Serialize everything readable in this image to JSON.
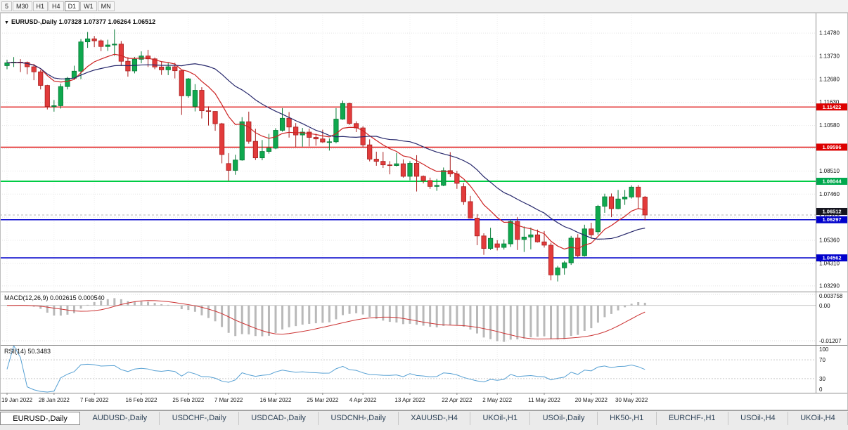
{
  "toolbar": {
    "timeframes": [
      {
        "label": "5",
        "active": false
      },
      {
        "label": "M30",
        "active": false
      },
      {
        "label": "H1",
        "active": false
      },
      {
        "label": "H4",
        "active": false
      },
      {
        "label": "D1",
        "active": true
      },
      {
        "label": "W1",
        "active": false
      },
      {
        "label": "MN",
        "active": false
      }
    ]
  },
  "symbol_header": {
    "dropdown_icon": "▼",
    "symbol": "EURUSD-,Daily",
    "ohlc": "1.07328 1.07377 1.06264 1.06512"
  },
  "tabs": [
    {
      "label": "EURUSD-,Daily",
      "active": true
    },
    {
      "label": "AUDUSD-,Daily",
      "active": false
    },
    {
      "label": "USDCHF-,Daily",
      "active": false
    },
    {
      "label": "USDCAD-,Daily",
      "active": false
    },
    {
      "label": "USDCNH-,Daily",
      "active": false
    },
    {
      "label": "XAUUSD-,H4",
      "active": false
    },
    {
      "label": "UKOil-,H1",
      "active": false
    },
    {
      "label": "USOil-,Daily",
      "active": false
    },
    {
      "label": "HK50-,H1",
      "active": false
    },
    {
      "label": "EURCHF-,H1",
      "active": false
    },
    {
      "label": "USOil-,H4",
      "active": false
    },
    {
      "label": "UKOil-,H4",
      "active": false
    }
  ],
  "chart_data": {
    "type": "candlestick",
    "symbol": "EURUSD",
    "timeframe": "Daily",
    "ohlc_current": {
      "open": 1.07328,
      "high": 1.07377,
      "low": 1.06264,
      "close": 1.06512
    },
    "colors": {
      "up": "#0fa84e",
      "up_border": "#067a36",
      "down": "#e23b3b",
      "down_border": "#a81f1f"
    },
    "price_range": [
      1.0303,
      1.1571
    ],
    "y_axis": {
      "ticks": [
        {
          "label": "1.14780",
          "value": 1.1478
        },
        {
          "label": "1.13730",
          "value": 1.1373
        },
        {
          "label": "1.12680",
          "value": 1.1268
        },
        {
          "label": "1.11630",
          "value": 1.1163
        },
        {
          "label": "1.10580",
          "value": 1.1058
        },
        {
          "label": "1.09530",
          "value": 1.0953
        },
        {
          "label": "1.08510",
          "value": 1.0851
        },
        {
          "label": "1.07460",
          "value": 1.0746
        },
        {
          "label": "1.06410",
          "value": 1.0641
        },
        {
          "label": "1.05360",
          "value": 1.0536
        },
        {
          "label": "1.04310",
          "value": 1.0431
        },
        {
          "label": "1.03290",
          "value": 1.0329
        }
      ]
    },
    "x_axis": {
      "ticks": [
        {
          "label": "19 Jan 2022",
          "index": 0
        },
        {
          "label": "28 Jan 2022",
          "index": 7
        },
        {
          "label": "7 Feb 2022",
          "index": 13
        },
        {
          "label": "16 Feb 2022",
          "index": 20
        },
        {
          "label": "25 Feb 2022",
          "index": 27
        },
        {
          "label": "7 Mar 2022",
          "index": 33
        },
        {
          "label": "16 Mar 2022",
          "index": 40
        },
        {
          "label": "25 Mar 2022",
          "index": 47
        },
        {
          "label": "4 Apr 2022",
          "index": 53
        },
        {
          "label": "13 Apr 2022",
          "index": 60
        },
        {
          "label": "22 Apr 2022",
          "index": 67
        },
        {
          "label": "2 May 2022",
          "index": 73
        },
        {
          "label": "11 May 2022",
          "index": 80
        },
        {
          "label": "20 May 2022",
          "index": 87
        },
        {
          "label": "30 May 2022",
          "index": 93
        }
      ]
    },
    "candles": [
      [
        1.133,
        1.1357,
        1.1314,
        1.1343
      ],
      [
        1.1343,
        1.1369,
        1.1324,
        1.1346
      ],
      [
        1.1346,
        1.136,
        1.1301,
        1.1345
      ],
      [
        1.1345,
        1.1349,
        1.1291,
        1.1325
      ],
      [
        1.1325,
        1.1338,
        1.1264,
        1.1302
      ],
      [
        1.1302,
        1.1311,
        1.1222,
        1.124
      ],
      [
        1.124,
        1.1243,
        1.1131,
        1.1144
      ],
      [
        1.1144,
        1.1174,
        1.1121,
        1.1148
      ],
      [
        1.1148,
        1.1248,
        1.1135,
        1.1235
      ],
      [
        1.1235,
        1.1279,
        1.1222,
        1.1273
      ],
      [
        1.1273,
        1.133,
        1.1266,
        1.1305
      ],
      [
        1.1305,
        1.1451,
        1.1269,
        1.1438
      ],
      [
        1.1438,
        1.1483,
        1.1411,
        1.1452
      ],
      [
        1.1452,
        1.1465,
        1.1414,
        1.1443
      ],
      [
        1.1443,
        1.1449,
        1.1396,
        1.1417
      ],
      [
        1.1417,
        1.1448,
        1.1397,
        1.1424
      ],
      [
        1.1424,
        1.1495,
        1.1375,
        1.1428
      ],
      [
        1.1428,
        1.1442,
        1.1329,
        1.135
      ],
      [
        1.135,
        1.1369,
        1.128,
        1.1306
      ],
      [
        1.1306,
        1.137,
        1.1295,
        1.1359
      ],
      [
        1.1359,
        1.1395,
        1.1341,
        1.1374
      ],
      [
        1.1374,
        1.1402,
        1.1324,
        1.1361
      ],
      [
        1.1361,
        1.1367,
        1.1314,
        1.1324
      ],
      [
        1.1324,
        1.135,
        1.1288,
        1.1311
      ],
      [
        1.1311,
        1.1344,
        1.1287,
        1.1325
      ],
      [
        1.1325,
        1.1343,
        1.1272,
        1.1307
      ],
      [
        1.1307,
        1.1309,
        1.1106,
        1.1193
      ],
      [
        1.1193,
        1.1274,
        1.1184,
        1.127
      ],
      [
        1.1145,
        1.1246,
        1.1122,
        1.1218
      ],
      [
        1.1218,
        1.1232,
        1.109,
        1.1125
      ],
      [
        1.1125,
        1.1145,
        1.1058,
        1.1122
      ],
      [
        1.1122,
        1.1123,
        1.1034,
        1.1066
      ],
      [
        1.1066,
        1.107,
        1.0886,
        1.0926
      ],
      [
        1.0885,
        1.0932,
        1.0806,
        1.0854
      ],
      [
        1.0854,
        1.0925,
        1.0834,
        1.0901
      ],
      [
        1.0901,
        1.1096,
        1.0898,
        1.1075
      ],
      [
        1.1075,
        1.1121,
        1.0975,
        1.0986
      ],
      [
        1.0986,
        1.1043,
        1.0901,
        1.0911
      ],
      [
        1.0911,
        1.0992,
        1.09,
        1.094
      ],
      [
        1.094,
        1.102,
        1.093,
        1.0955
      ],
      [
        1.0955,
        1.1046,
        1.095,
        1.1036
      ],
      [
        1.1036,
        1.1137,
        1.103,
        1.1091
      ],
      [
        1.1091,
        1.1119,
        1.1003,
        1.1051
      ],
      [
        1.1051,
        1.1069,
        1.0961,
        1.1015
      ],
      [
        1.1015,
        1.1047,
        1.0962,
        1.1028
      ],
      [
        1.1028,
        1.1044,
        1.0963,
        1.1004
      ],
      [
        1.1004,
        1.1021,
        1.0966,
        1.0997
      ],
      [
        1.0997,
        1.1039,
        1.0979,
        1.0983
      ],
      [
        1.0983,
        1.0999,
        1.0944,
        1.0984
      ],
      [
        1.0984,
        1.1137,
        1.0977,
        1.1087
      ],
      [
        1.1087,
        1.1171,
        1.1084,
        1.1158
      ],
      [
        1.1158,
        1.1162,
        1.1061,
        1.1067
      ],
      [
        1.1067,
        1.1077,
        1.1028,
        1.1047
      ],
      [
        1.1047,
        1.1055,
        1.096,
        1.097
      ],
      [
        1.097,
        1.0995,
        1.0895,
        1.0905
      ],
      [
        1.0905,
        1.0939,
        1.0875,
        1.0895
      ],
      [
        1.0895,
        1.0938,
        1.0865,
        1.0879
      ],
      [
        1.0879,
        1.0896,
        1.0836,
        1.0876
      ],
      [
        1.0876,
        1.0933,
        1.0872,
        1.0884
      ],
      [
        1.0884,
        1.0904,
        1.0821,
        1.0827
      ],
      [
        1.0827,
        1.0896,
        1.0809,
        1.0886
      ],
      [
        1.0886,
        1.0923,
        1.0758,
        1.0827
      ],
      [
        1.0827,
        1.0831,
        1.0795,
        1.0808
      ],
      [
        1.0808,
        1.0821,
        1.077,
        1.0781
      ],
      [
        1.0781,
        1.0815,
        1.0761,
        1.0786
      ],
      [
        1.0786,
        1.0867,
        1.0782,
        1.0853
      ],
      [
        1.0853,
        1.0937,
        1.0824,
        1.0838
      ],
      [
        1.0838,
        1.0852,
        1.077,
        1.0795
      ],
      [
        1.078,
        1.0797,
        1.0697,
        1.0712
      ],
      [
        1.0712,
        1.0738,
        1.0635,
        1.0637
      ],
      [
        1.0637,
        1.0655,
        1.0514,
        1.0556
      ],
      [
        1.0556,
        1.0568,
        1.047,
        1.0499
      ],
      [
        1.0499,
        1.0593,
        1.0492,
        1.0545
      ],
      [
        1.052,
        1.0537,
        1.049,
        1.0504
      ],
      [
        1.0504,
        1.054,
        1.0494,
        1.052
      ],
      [
        1.052,
        1.0632,
        1.0506,
        1.0622
      ],
      [
        1.0622,
        1.0642,
        1.0492,
        1.054
      ],
      [
        1.054,
        1.0599,
        1.0483,
        1.0551
      ],
      [
        1.0551,
        1.0594,
        1.0495,
        1.0561
      ],
      [
        1.0561,
        1.0585,
        1.0526,
        1.0529
      ],
      [
        1.0529,
        1.0578,
        1.0503,
        1.0514
      ],
      [
        1.0514,
        1.0525,
        1.0354,
        1.0379
      ],
      [
        1.0379,
        1.042,
        1.0349,
        1.0411
      ],
      [
        1.0411,
        1.0443,
        1.038,
        1.0434
      ],
      [
        1.0434,
        1.0556,
        1.0424,
        1.0546
      ],
      [
        1.0546,
        1.0564,
        1.0459,
        1.0466
      ],
      [
        1.0466,
        1.0607,
        1.0462,
        1.0588
      ],
      [
        1.0588,
        1.0616,
        1.0543,
        1.0561
      ],
      [
        1.0575,
        1.0697,
        1.0561,
        1.0691
      ],
      [
        1.0691,
        1.0748,
        1.0661,
        1.0734
      ],
      [
        1.0734,
        1.0749,
        1.0641,
        1.068
      ],
      [
        1.068,
        1.0765,
        1.0677,
        1.0724
      ],
      [
        1.0724,
        1.0765,
        1.0697,
        1.0733
      ],
      [
        1.0733,
        1.0786,
        1.0726,
        1.0778
      ],
      [
        1.0778,
        1.0787,
        1.0678,
        1.0733
      ],
      [
        1.07328,
        1.07377,
        1.06264,
        1.06512
      ]
    ],
    "moving_averages": [
      {
        "name": "fast-ma",
        "period": 10,
        "method": "ema",
        "color": "#cc2222"
      },
      {
        "name": "slow-ma",
        "period": 21,
        "method": "sma",
        "color": "#26276b"
      }
    ],
    "levels": [
      {
        "value": 1.11422,
        "label": "1.11422",
        "color": "#dd0000",
        "badge_color": "#dd0000",
        "width": 1.3
      },
      {
        "value": 1.09596,
        "label": "1.09596",
        "color": "#dd0000",
        "badge_color": "#dd0000",
        "width": 1.3
      },
      {
        "value": 1.08044,
        "label": "1.08044",
        "color": "#00cc44",
        "badge_color": "#00a94e",
        "width": 2
      },
      {
        "value": 1.06297,
        "label": "1.06297",
        "color": "#0000cc",
        "badge_color": "#0000cc",
        "width": 1.5
      },
      {
        "value": 1.04562,
        "label": "1.04562",
        "color": "#0000cc",
        "badge_color": "#0000cc",
        "width": 1.5
      }
    ],
    "current_price": {
      "value": 1.06512,
      "label": "1.06512",
      "badge_color": "#15151f"
    },
    "indicators": {
      "macd": {
        "label": "MACD(12,26,9)",
        "value_main": "0.002615",
        "value_signal": "0.000540",
        "fast": 12,
        "slow": 26,
        "signal_period": 9,
        "histogram_color": "#b9b9b9",
        "signal_color": "#cc3333",
        "axis": [
          {
            "label": "0.003758",
            "value": 0.003758
          },
          {
            "label": "0.00",
            "value": 0
          },
          {
            "label": "-0.01207",
            "value": -0.01207
          }
        ],
        "range": [
          -0.0135,
          0.0045
        ]
      },
      "rsi": {
        "label": "RSI(14)",
        "value": "50.3483",
        "period": 14,
        "line_color": "#56a0d3",
        "levels": [
          70,
          30
        ],
        "axis": [
          {
            "label": "100",
            "value": 100
          },
          {
            "label": "70",
            "value": 70
          },
          {
            "label": "30",
            "value": 30
          },
          {
            "label": "0",
            "value": 0
          }
        ],
        "range": [
          0,
          100
        ]
      }
    }
  }
}
